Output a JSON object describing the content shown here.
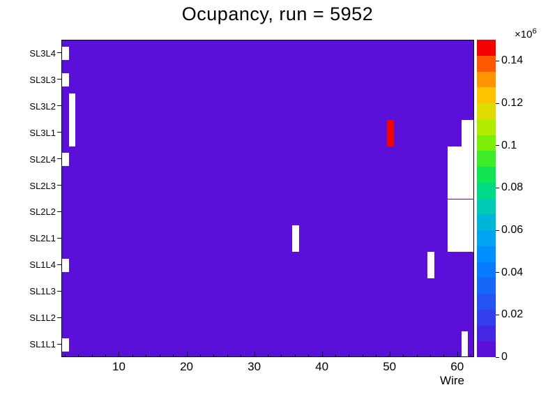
{
  "chart_data": {
    "type": "heatmap",
    "title": "Ocupancy, run = 5952",
    "xlabel": "Wire",
    "x_axis": {
      "min": 1.5,
      "max": 62.5,
      "major_ticks": [
        10,
        20,
        30,
        40,
        50,
        60
      ],
      "minor_tick_step": 2
    },
    "y_rows_top_to_bottom": [
      "SL3L4",
      "SL3L3",
      "SL3L2",
      "SL3L1",
      "SL2L4",
      "SL2L3",
      "SL2L2",
      "SL2L1",
      "SL1L4",
      "SL1L3",
      "SL1L2",
      "SL1L1"
    ],
    "z_axis": {
      "min": 0,
      "max": 0.15,
      "scale_label": "×10",
      "scale_exponent": "6",
      "tick_values": [
        0,
        0.02,
        0.04,
        0.06,
        0.08,
        0.1,
        0.12,
        0.14
      ],
      "tick_labels": [
        "0",
        "0.02",
        "0.04",
        "0.06",
        "0.08",
        "0.1",
        "0.12",
        "0.14"
      ]
    },
    "palette_bottom_to_top": [
      "#5a10d8",
      "#4527e3",
      "#333eec",
      "#2353f2",
      "#1567f8",
      "#087bfc",
      "#008fff",
      "#00a2f2",
      "#00b6d8",
      "#00c9b4",
      "#00da86",
      "#12e554",
      "#3eec28",
      "#7bef0a",
      "#b2ea00",
      "#e0dc00",
      "#ffc400",
      "#ff9400",
      "#ff5a00",
      "#f40000"
    ],
    "base_color": "#5a10d8",
    "base_value_range": [
      0,
      7500
    ],
    "empty_color": "#ffffff",
    "cells": {
      "hot": [
        {
          "row": "SL3L1",
          "wire": 50,
          "approx_value": 150000,
          "color": "#f40000"
        }
      ],
      "empty": [
        {
          "row": "SL3L4",
          "wire_start": 2,
          "wire_end": 2,
          "h_frac": 0.5
        },
        {
          "row": "SL3L3",
          "wire_start": 2,
          "wire_end": 2,
          "h_frac": 0.5
        },
        {
          "row": "SL2L4",
          "wire_start": 2,
          "wire_end": 2,
          "h_frac": 0.5
        },
        {
          "row": "SL1L4",
          "wire_start": 2,
          "wire_end": 2,
          "h_frac": 0.5
        },
        {
          "row": "SL1L1",
          "wire_start": 2,
          "wire_end": 2,
          "h_frac": 0.5
        },
        {
          "row": "SL3L2",
          "wire_start": 3,
          "wire_end": 3
        },
        {
          "row": "SL3L1",
          "wire_start": 3,
          "wire_end": 3
        },
        {
          "row": "SL3L1",
          "wire_start": 61,
          "wire_end": 62
        },
        {
          "row": "SL2L4",
          "wire_start": 59,
          "wire_end": 62
        },
        {
          "row": "SL2L3",
          "wire_start": 59,
          "wire_end": 62
        },
        {
          "row": "SL2L2",
          "wire_start": 59,
          "wire_end": 62
        },
        {
          "row": "SL2L1",
          "wire_start": 59,
          "wire_end": 62
        },
        {
          "row": "SL2L1",
          "wire_start": 36,
          "wire_end": 36
        },
        {
          "row": "SL1L4",
          "wire_start": 56,
          "wire_end": 56
        },
        {
          "row": "SL1L1",
          "wire_start": 61,
          "wire_end": 61
        }
      ]
    }
  }
}
